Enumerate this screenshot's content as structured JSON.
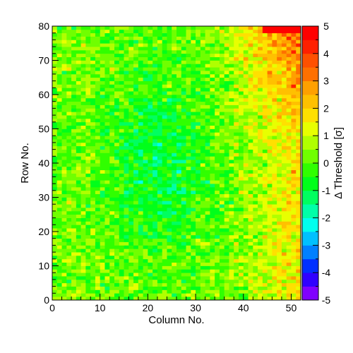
{
  "chart_data": {
    "type": "heatmap",
    "title": "",
    "xlabel": "Column No.",
    "ylabel": "Row No.",
    "zlabel": "Δ Threshold [σ]",
    "xlim": [
      0,
      52
    ],
    "ylim": [
      0,
      80
    ],
    "zlim": [
      -5,
      5
    ],
    "x_ticks": [
      0,
      10,
      20,
      30,
      40,
      50
    ],
    "y_ticks": [
      0,
      10,
      20,
      30,
      40,
      50,
      60,
      70,
      80
    ],
    "z_ticks": [
      -5,
      -4,
      -3,
      -2,
      -1,
      0,
      1,
      2,
      3,
      4,
      5
    ],
    "x_tick_labels": [
      "0",
      "10",
      "20",
      "30",
      "40",
      "50"
    ],
    "y_tick_labels": [
      "0",
      "10",
      "20",
      "30",
      "40",
      "50",
      "60",
      "70",
      "80"
    ],
    "z_tick_labels": [
      "-5",
      "-4",
      "-3",
      "-2",
      "-1",
      "0",
      "1",
      "2",
      "3",
      "4",
      "5"
    ],
    "n_columns": 52,
    "n_rows": 80,
    "grid": false,
    "colorbar_position": "right",
    "palette": [
      "#8000ff",
      "#3000ff",
      "#0030ff",
      "#0080ff",
      "#00c0ff",
      "#00ffee",
      "#00ffa8",
      "#00ff60",
      "#00ff1a",
      "#30ff00",
      "#70ff00",
      "#b0ff00",
      "#e8ff00",
      "#ffe000",
      "#ffc000",
      "#ffa000",
      "#ff7000",
      "#ff5000",
      "#ff2000",
      "#ff0000"
    ],
    "value_model": "Estimated per-pixel threshold deviation: mean ~0; lower values (-1 to -2) in central columns 15-30 rows 15-65; higher values (+1 to +3) toward right columns, top-right corner reaching +5 at rows 79-80, columns 44-51."
  }
}
